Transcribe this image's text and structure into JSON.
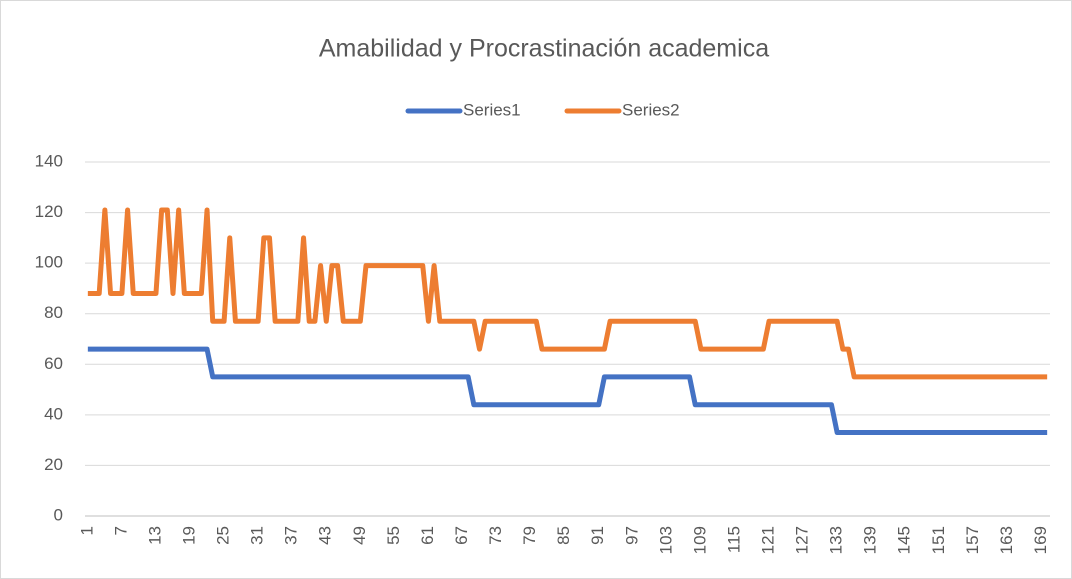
{
  "chart_data": {
    "type": "line",
    "title": "Amabilidad y Procrastinación academica",
    "categories": [
      "1",
      null,
      null,
      null,
      null,
      null,
      "7",
      null,
      null,
      null,
      null,
      null,
      "13",
      null,
      null,
      null,
      null,
      null,
      "19",
      null,
      null,
      null,
      null,
      null,
      "25",
      null,
      null,
      null,
      null,
      null,
      "31",
      null,
      null,
      null,
      null,
      null,
      "37",
      null,
      null,
      null,
      null,
      null,
      "43",
      null,
      null,
      null,
      null,
      null,
      "49",
      null,
      null,
      null,
      null,
      null,
      "55",
      null,
      null,
      null,
      null,
      null,
      "61",
      null,
      null,
      null,
      null,
      null,
      "67",
      null,
      null,
      null,
      null,
      null,
      "73",
      null,
      null,
      null,
      null,
      null,
      "79",
      null,
      null,
      null,
      null,
      null,
      "85",
      null,
      null,
      null,
      null,
      null,
      "91",
      null,
      null,
      null,
      null,
      null,
      "97",
      null,
      null,
      null,
      null,
      null,
      "103",
      null,
      null,
      null,
      null,
      null,
      "109",
      null,
      null,
      null,
      null,
      null,
      "115",
      null,
      null,
      null,
      null,
      null,
      "121",
      null,
      null,
      null,
      null,
      null,
      "127",
      null,
      null,
      null,
      null,
      null,
      "133",
      null,
      null,
      null,
      null,
      null,
      "139",
      null,
      null,
      null,
      null,
      null,
      "145",
      null,
      null,
      null,
      null,
      null,
      "151",
      null,
      null,
      null,
      null,
      null,
      "157",
      null,
      null,
      null,
      null,
      null,
      "163",
      null,
      null,
      null,
      null,
      null,
      "169",
      null
    ],
    "series": [
      {
        "name": "Series1",
        "color": "#4472c4",
        "values": [
          66,
          66,
          66,
          66,
          66,
          66,
          66,
          66,
          66,
          66,
          66,
          66,
          66,
          66,
          66,
          66,
          66,
          66,
          66,
          66,
          66,
          66,
          55,
          55,
          55,
          55,
          55,
          55,
          55,
          55,
          55,
          55,
          55,
          55,
          55,
          55,
          55,
          55,
          55,
          55,
          55,
          55,
          55,
          55,
          55,
          55,
          55,
          55,
          55,
          55,
          55,
          55,
          55,
          55,
          55,
          55,
          55,
          55,
          55,
          55,
          55,
          55,
          55,
          55,
          55,
          55,
          55,
          55,
          44,
          44,
          44,
          44,
          44,
          44,
          44,
          44,
          44,
          44,
          44,
          44,
          44,
          44,
          44,
          44,
          44,
          44,
          44,
          44,
          44,
          44,
          44,
          55,
          55,
          55,
          55,
          55,
          55,
          55,
          55,
          55,
          55,
          55,
          55,
          55,
          55,
          55,
          55,
          44,
          44,
          44,
          44,
          44,
          44,
          44,
          44,
          44,
          44,
          44,
          44,
          44,
          44,
          44,
          44,
          44,
          44,
          44,
          44,
          44,
          44,
          44,
          44,
          44,
          33,
          33,
          33,
          33,
          33,
          33,
          33,
          33,
          33,
          33,
          33,
          33,
          33,
          33,
          33,
          33,
          33,
          33,
          33,
          33,
          33,
          33,
          33,
          33,
          33,
          33,
          33,
          33,
          33,
          33,
          33,
          33,
          33,
          33,
          33,
          33,
          33,
          33
        ]
      },
      {
        "name": "Series2",
        "color": "#ed7d31",
        "values": [
          88,
          88,
          88,
          121,
          88,
          88,
          88,
          121,
          88,
          88,
          88,
          88,
          88,
          121,
          121,
          88,
          121,
          88,
          88,
          88,
          88,
          121,
          77,
          77,
          77,
          110,
          77,
          77,
          77,
          77,
          77,
          110,
          110,
          77,
          77,
          77,
          77,
          77,
          110,
          77,
          77,
          99,
          77,
          99,
          99,
          77,
          77,
          77,
          77,
          99,
          99,
          99,
          99,
          99,
          99,
          99,
          99,
          99,
          99,
          99,
          77,
          99,
          77,
          77,
          77,
          77,
          77,
          77,
          77,
          66,
          77,
          77,
          77,
          77,
          77,
          77,
          77,
          77,
          77,
          77,
          66,
          66,
          66,
          66,
          66,
          66,
          66,
          66,
          66,
          66,
          66,
          66,
          77,
          77,
          77,
          77,
          77,
          77,
          77,
          77,
          77,
          77,
          77,
          77,
          77,
          77,
          77,
          77,
          66,
          66,
          66,
          66,
          66,
          66,
          66,
          66,
          66,
          66,
          66,
          66,
          77,
          77,
          77,
          77,
          77,
          77,
          77,
          77,
          77,
          77,
          77,
          77,
          77,
          66,
          66,
          55,
          55,
          55,
          55,
          55,
          55,
          55,
          55,
          55,
          55,
          55,
          55,
          55,
          55,
          55,
          55,
          55,
          55,
          55,
          55,
          55,
          55,
          55,
          55,
          55,
          55,
          55,
          55,
          55,
          55,
          55,
          55,
          55,
          55,
          55
        ]
      }
    ],
    "ylim": [
      0,
      140
    ],
    "yticks": [
      0,
      20,
      40,
      60,
      80,
      100,
      120,
      140
    ],
    "grid": true,
    "legend": "top"
  }
}
